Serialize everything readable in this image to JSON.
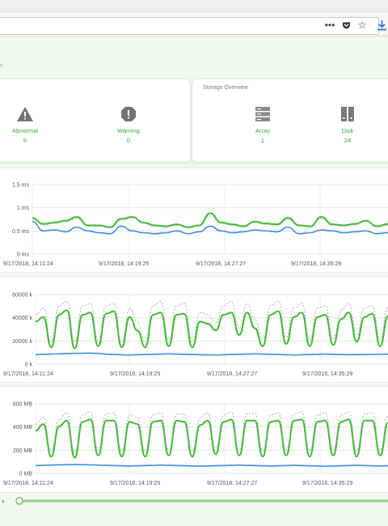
{
  "browser": {
    "icons": [
      "more-icon",
      "pocket-icon",
      "star-icon",
      "download-icon"
    ]
  },
  "breadcrumb": "s",
  "alarm_card": {
    "items": [
      {
        "label": "Abnormal",
        "value": "6",
        "icon": "warning-triangle-icon"
      },
      {
        "label": "Warning",
        "value": "0",
        "icon": "warning-octagon-icon"
      }
    ]
  },
  "storage_card": {
    "title": "Storage Overview",
    "items": [
      {
        "label": "Array",
        "value": "1",
        "icon": "server-icon"
      },
      {
        "label": "Disk",
        "value": "24",
        "icon": "disk-icon"
      }
    ]
  },
  "colors": {
    "green": "#3cbc2e",
    "blue": "#3b8de0",
    "gray_dash": "#b5a9bd",
    "accent_text": "#3aa33f"
  },
  "chart_data": [
    {
      "type": "line",
      "yticks": [
        "1.5 ms",
        "1 ms",
        "0.5 ms",
        "0 ms"
      ],
      "xticks": [
        "9/17/2018, 14:11:24",
        "9/17/2018, 14:19:25",
        "9/17/2018, 14:27:27",
        "9/17/2018, 14:35:29"
      ],
      "ylim": [
        0,
        1.5
      ],
      "series": [
        {
          "color": "#3cbc2e",
          "values": [
            0.78,
            0.65,
            0.68,
            0.72,
            0.8,
            0.62,
            0.62,
            0.58,
            0.76,
            0.8,
            0.68,
            0.62,
            0.6,
            0.64,
            0.58,
            0.62,
            0.88,
            0.68,
            0.64,
            0.6,
            0.7,
            0.66,
            0.64,
            0.78,
            0.62,
            0.6,
            0.8,
            0.64,
            0.62,
            0.65,
            0.72,
            0.6,
            0.65
          ]
        },
        {
          "color": "#b5a9bd",
          "dash": true,
          "values": [
            0.74,
            0.62,
            0.66,
            0.7,
            0.76,
            0.6,
            0.6,
            0.56,
            0.72,
            0.78,
            0.66,
            0.6,
            0.58,
            0.62,
            0.56,
            0.6,
            0.82,
            0.66,
            0.62,
            0.58,
            0.68,
            0.64,
            0.62,
            0.74,
            0.6,
            0.58,
            0.76,
            0.62,
            0.6,
            0.63,
            0.7,
            0.58,
            0.62
          ]
        },
        {
          "color": "#3b8de0",
          "values": [
            0.7,
            0.5,
            0.52,
            0.48,
            0.58,
            0.5,
            0.46,
            0.44,
            0.6,
            0.5,
            0.46,
            0.44,
            0.46,
            0.5,
            0.44,
            0.48,
            0.6,
            0.5,
            0.46,
            0.48,
            0.52,
            0.5,
            0.48,
            0.58,
            0.44,
            0.46,
            0.52,
            0.5,
            0.46,
            0.48,
            0.5,
            0.44,
            0.46
          ]
        }
      ]
    },
    {
      "type": "line",
      "yticks": [
        "60000 k",
        "40000 k",
        "20000 k",
        "0 k"
      ],
      "xticks": [
        "9/17/2018, 14:11:24",
        "9/17/2018, 14:19:25",
        "9/17/2018, 14:27:27",
        "9/17/2018, 14:35:29"
      ],
      "ylim": [
        0,
        62000
      ],
      "series": [
        {
          "color": "#3cbc2e",
          "values": [
            38000,
            42000,
            15000,
            44000,
            48000,
            14000,
            44000,
            46000,
            16000,
            45000,
            47000,
            15000,
            42000,
            30000,
            15000,
            44000,
            46000,
            16000,
            44000,
            45000,
            15000,
            38000,
            36000,
            30000,
            44000,
            46000,
            26000,
            46000,
            32000,
            16000,
            44000,
            47000,
            18000,
            42000,
            46000,
            16000,
            42000,
            44000,
            17000,
            40000,
            46000,
            20000,
            42000,
            45000,
            16000,
            43000
          ]
        },
        {
          "color": "#b5a9bd",
          "dash": true,
          "values": [
            44000,
            50000,
            20000,
            52000,
            56000,
            20000,
            52000,
            54000,
            22000,
            52000,
            54000,
            20000,
            50000,
            38000,
            20000,
            52000,
            56000,
            22000,
            52000,
            54000,
            20000,
            46000,
            44000,
            36000,
            52000,
            56000,
            32000,
            54000,
            40000,
            22000,
            52000,
            56000,
            24000,
            50000,
            54000,
            22000,
            50000,
            52000,
            22000,
            48000,
            54000,
            26000,
            50000,
            52000,
            22000,
            50000
          ]
        },
        {
          "color": "#3b8de0",
          "values": [
            8500,
            8800,
            9000,
            9200,
            9400,
            9600,
            9700,
            9800,
            9600,
            9000,
            8600,
            8400,
            8200,
            8400,
            8600,
            8800,
            9000,
            9200,
            9000,
            8800,
            8600,
            8400,
            8300,
            8200,
            8400,
            8600,
            8800,
            9000,
            9200,
            9000,
            8800,
            8600,
            8400,
            8200,
            8400,
            8600,
            8800,
            9000,
            8800,
            8600,
            8400,
            8500,
            8600,
            8700,
            8800,
            8900
          ]
        }
      ]
    },
    {
      "type": "line",
      "yticks": [
        "600 MB",
        "400 MB",
        "200 MB",
        "0 MB"
      ],
      "xticks": [
        "9/17/2018, 14:11:24",
        "9/17/2018, 14:19:25",
        "9/17/2018, 14:27:27",
        "9/17/2018, 14:35:29"
      ],
      "ylim": [
        0,
        620
      ],
      "series": [
        {
          "color": "#3cbc2e",
          "values": [
            380,
            440,
            150,
            420,
            470,
            140,
            460,
            480,
            160,
            470,
            470,
            150,
            460,
            440,
            150,
            460,
            470,
            160,
            470,
            460,
            150,
            430,
            470,
            170,
            460,
            480,
            160,
            470,
            470,
            150,
            460,
            470,
            160,
            470,
            480,
            150,
            460,
            470,
            160,
            460,
            480,
            150,
            470,
            470,
            160,
            450
          ]
        },
        {
          "color": "#b5a9bd",
          "dash": true,
          "values": [
            440,
            500,
            200,
            480,
            540,
            190,
            520,
            550,
            210,
            530,
            540,
            200,
            520,
            500,
            200,
            520,
            540,
            210,
            530,
            530,
            200,
            490,
            540,
            220,
            520,
            550,
            210,
            530,
            540,
            200,
            520,
            540,
            210,
            530,
            550,
            200,
            520,
            540,
            210,
            520,
            550,
            200,
            530,
            540,
            210,
            510
          ]
        },
        {
          "color": "#3b8de0",
          "values": [
            70,
            72,
            74,
            76,
            78,
            80,
            78,
            76,
            74,
            72,
            70,
            68,
            66,
            68,
            70,
            72,
            74,
            72,
            70,
            68,
            66,
            64,
            66,
            68,
            70,
            72,
            74,
            72,
            70,
            68,
            66,
            68,
            70,
            72,
            70,
            68,
            66,
            64,
            66,
            68,
            70,
            72,
            70,
            68,
            66,
            68
          ]
        }
      ]
    }
  ],
  "slider": {
    "value_fraction": 0.0
  }
}
